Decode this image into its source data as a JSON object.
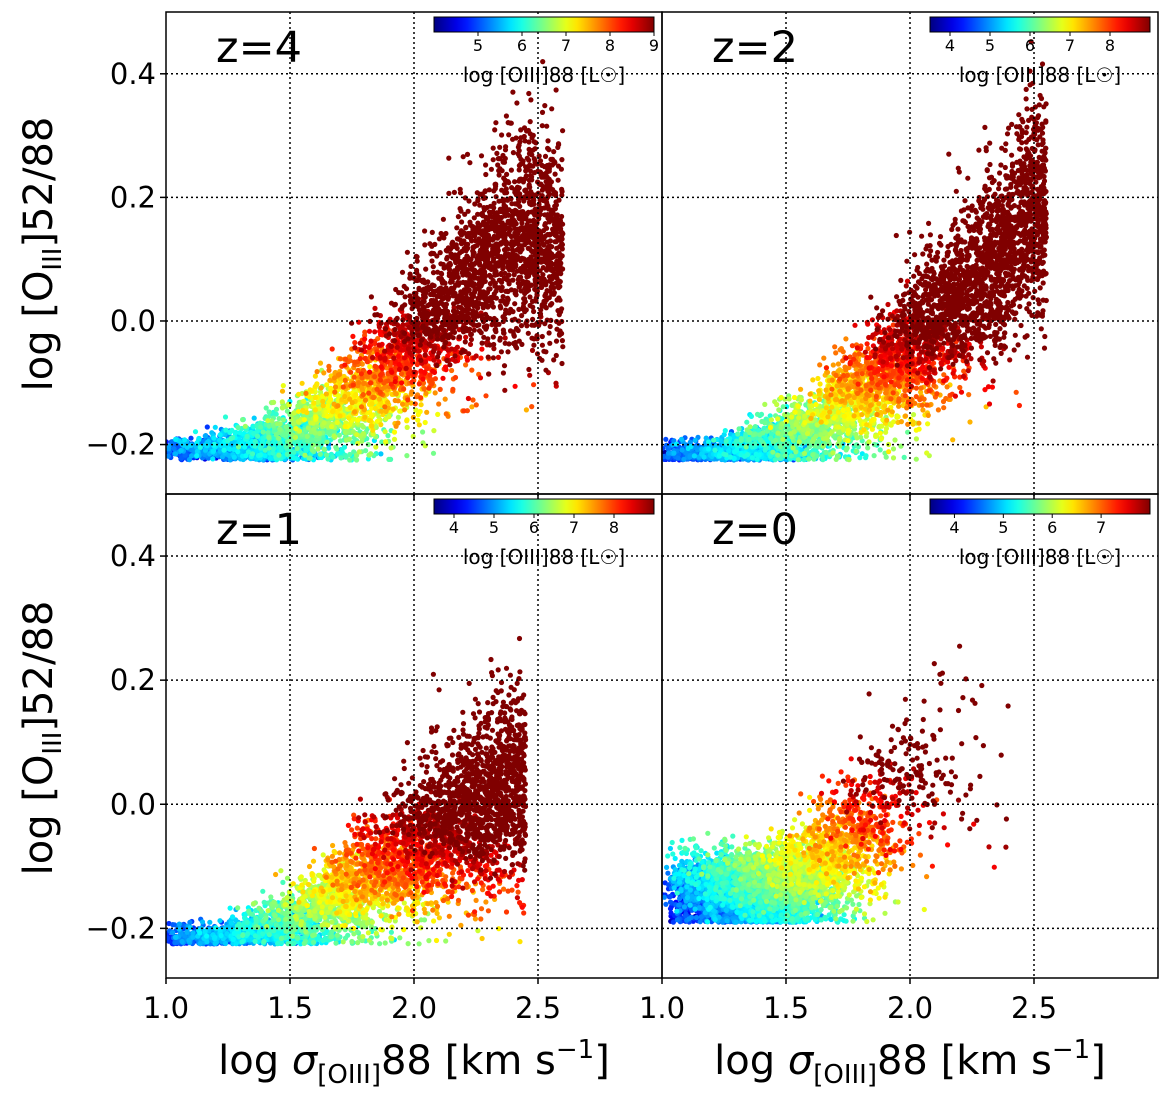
{
  "chart_data": {
    "type": "scatter",
    "layout": "2x2 grid, shared axes",
    "xlabel": "log σ[OIII]88 [km s⁻¹]",
    "ylabel": "log [OIII]52/88",
    "xlim": [
      1.0,
      3.0
    ],
    "ylim": [
      -0.28,
      0.5
    ],
    "xticks": [
      "1.0",
      "1.5",
      "2.0",
      "2.5"
    ],
    "yticks": [
      "−0.2",
      "0.0",
      "0.2",
      "0.4"
    ],
    "grid": true,
    "colormap": "jet",
    "colorbar_label": "log [OIII]88 [L☉]",
    "colorbar_location": "top-right inside each panel",
    "panels": [
      {
        "label": "z=4",
        "color_range": [
          4.0,
          9.0
        ],
        "colorbar_ticks": [
          "5",
          "6",
          "7",
          "8",
          "9"
        ],
        "points_approx": 4500,
        "trend": {
          "x": [
            1.0,
            1.4,
            1.6,
            1.8,
            2.0,
            2.2,
            2.4
          ],
          "y": [
            -0.21,
            -0.2,
            -0.17,
            -0.12,
            -0.04,
            0.05,
            0.13
          ]
        },
        "lum_range": [
          4.0,
          9.0
        ],
        "x_range": [
          1.0,
          2.6
        ]
      },
      {
        "label": "z=2",
        "color_range": [
          3.5,
          9.0
        ],
        "colorbar_ticks": [
          "4",
          "5",
          "6",
          "7",
          "8"
        ],
        "points_approx": 5000,
        "trend": {
          "x": [
            1.0,
            1.3,
            1.5,
            1.7,
            1.9,
            2.1,
            2.3,
            2.5
          ],
          "y": [
            -0.22,
            -0.21,
            -0.19,
            -0.15,
            -0.09,
            -0.01,
            0.08,
            0.18
          ]
        },
        "lum_range": [
          3.5,
          9.0
        ],
        "x_range": [
          1.0,
          2.55
        ]
      },
      {
        "label": "z=1",
        "color_range": [
          3.5,
          9.0
        ],
        "colorbar_ticks": [
          "4",
          "5",
          "6",
          "7",
          "8"
        ],
        "points_approx": 4500,
        "trend": {
          "x": [
            1.0,
            1.3,
            1.5,
            1.7,
            1.9,
            2.1,
            2.3,
            2.4
          ],
          "y": [
            -0.22,
            -0.21,
            -0.19,
            -0.15,
            -0.1,
            -0.05,
            0.0,
            0.03
          ]
        },
        "lum_range": [
          3.5,
          9.0
        ],
        "x_range": [
          1.0,
          2.45
        ]
      },
      {
        "label": "z=0",
        "color_range": [
          3.5,
          8.0
        ],
        "colorbar_ticks": [
          "4",
          "5",
          "6",
          "7"
        ],
        "points_approx": 5000,
        "trend": {
          "x": [
            1.0,
            1.2,
            1.4,
            1.55,
            1.7,
            1.85,
            2.0,
            2.1
          ],
          "y": [
            -0.14,
            -0.14,
            -0.14,
            -0.13,
            -0.09,
            -0.04,
            0.02,
            0.06
          ]
        },
        "lum_range": [
          3.5,
          8.0
        ],
        "x_range": [
          1.0,
          2.3
        ]
      }
    ]
  }
}
